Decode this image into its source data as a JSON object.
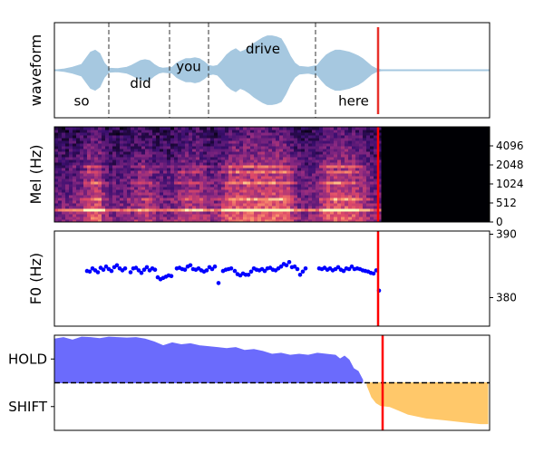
{
  "chart_data": [
    {
      "type": "area",
      "panel": "waveform",
      "ylabel": "waveform",
      "x_range": [
        0,
        4.8
      ],
      "y_range": [
        -1,
        1
      ],
      "word_boundaries": [
        0.6,
        1.27,
        1.7,
        2.88
      ],
      "words": [
        {
          "text": "so",
          "x": 0.3,
          "y": -0.65
        },
        {
          "text": "did",
          "x": 0.95,
          "y": -0.28
        },
        {
          "text": "you",
          "x": 1.48,
          "y": 0.08
        },
        {
          "text": "drive",
          "x": 2.3,
          "y": 0.45
        },
        {
          "text": "here",
          "x": 3.3,
          "y": -0.65
        }
      ],
      "envelope": [
        [
          0.0,
          0.0
        ],
        [
          0.1,
          0.02
        ],
        [
          0.2,
          0.06
        ],
        [
          0.3,
          0.12
        ],
        [
          0.35,
          0.25
        ],
        [
          0.4,
          0.38
        ],
        [
          0.45,
          0.42
        ],
        [
          0.5,
          0.35
        ],
        [
          0.55,
          0.15
        ],
        [
          0.6,
          0.04
        ],
        [
          0.7,
          0.03
        ],
        [
          0.8,
          0.06
        ],
        [
          0.85,
          0.1
        ],
        [
          0.9,
          0.15
        ],
        [
          0.95,
          0.2
        ],
        [
          1.0,
          0.22
        ],
        [
          1.05,
          0.2
        ],
        [
          1.1,
          0.12
        ],
        [
          1.15,
          0.06
        ],
        [
          1.2,
          0.04
        ],
        [
          1.3,
          0.06
        ],
        [
          1.35,
          0.15
        ],
        [
          1.4,
          0.2
        ],
        [
          1.45,
          0.24
        ],
        [
          1.5,
          0.24
        ],
        [
          1.55,
          0.26
        ],
        [
          1.6,
          0.24
        ],
        [
          1.65,
          0.18
        ],
        [
          1.7,
          0.1
        ],
        [
          1.75,
          0.08
        ],
        [
          1.8,
          0.1
        ],
        [
          1.85,
          0.2
        ],
        [
          1.9,
          0.32
        ],
        [
          1.95,
          0.4
        ],
        [
          2.0,
          0.45
        ],
        [
          2.05,
          0.38
        ],
        [
          2.1,
          0.42
        ],
        [
          2.15,
          0.48
        ],
        [
          2.2,
          0.56
        ],
        [
          2.25,
          0.62
        ],
        [
          2.3,
          0.68
        ],
        [
          2.35,
          0.72
        ],
        [
          2.4,
          0.72
        ],
        [
          2.45,
          0.7
        ],
        [
          2.5,
          0.66
        ],
        [
          2.55,
          0.5
        ],
        [
          2.6,
          0.3
        ],
        [
          2.65,
          0.15
        ],
        [
          2.7,
          0.08
        ],
        [
          2.8,
          0.06
        ],
        [
          2.9,
          0.1
        ],
        [
          2.95,
          0.22
        ],
        [
          3.0,
          0.32
        ],
        [
          3.05,
          0.38
        ],
        [
          3.1,
          0.42
        ],
        [
          3.15,
          0.42
        ],
        [
          3.2,
          0.4
        ],
        [
          3.25,
          0.38
        ],
        [
          3.3,
          0.34
        ],
        [
          3.35,
          0.3
        ],
        [
          3.4,
          0.24
        ],
        [
          3.45,
          0.16
        ],
        [
          3.5,
          0.08
        ],
        [
          3.55,
          0.03
        ],
        [
          3.6,
          0.01
        ],
        [
          3.7,
          0.0
        ],
        [
          4.8,
          0.0
        ]
      ],
      "cursor_x": 3.57,
      "cursor_color": "#e8302a",
      "fill_color": "#a6c8e0"
    },
    {
      "type": "heatmap",
      "panel": "mel",
      "ylabel": "Mel (Hz)",
      "x_range": [
        0,
        4.8
      ],
      "yticks": [
        "0",
        "512",
        "1024",
        "2048",
        "4096"
      ],
      "silence_from_x": 3.58,
      "cursor_x": 3.57,
      "cursor_color": "#ff0000",
      "colormap": [
        "#000004",
        "#3b0f70",
        "#8c2981",
        "#de4968",
        "#fe9f6d",
        "#fcfdbf"
      ]
    },
    {
      "type": "scatter",
      "panel": "f0",
      "ylabel": "F0 (Hz)",
      "x_range": [
        0,
        4.8
      ],
      "ylim": [
        375.5,
        390.5
      ],
      "yticks": [
        380,
        390
      ],
      "marker_color": "#0000ff",
      "cursor_x": 3.57,
      "cursor_color": "#ff0000",
      "points": [
        [
          0.36,
          384.2
        ],
        [
          0.39,
          384.1
        ],
        [
          0.42,
          384.6
        ],
        [
          0.45,
          384.3
        ],
        [
          0.48,
          384.0
        ],
        [
          0.51,
          384.7
        ],
        [
          0.54,
          384.4
        ],
        [
          0.57,
          384.9
        ],
        [
          0.6,
          384.5
        ],
        [
          0.63,
          384.2
        ],
        [
          0.66,
          384.8
        ],
        [
          0.69,
          385.1
        ],
        [
          0.72,
          384.6
        ],
        [
          0.75,
          384.3
        ],
        [
          0.78,
          384.6
        ],
        [
          0.84,
          384.0
        ],
        [
          0.87,
          384.6
        ],
        [
          0.9,
          384.7
        ],
        [
          0.93,
          384.3
        ],
        [
          0.96,
          383.9
        ],
        [
          0.99,
          384.4
        ],
        [
          1.02,
          384.8
        ],
        [
          1.05,
          384.3
        ],
        [
          1.08,
          384.6
        ],
        [
          1.11,
          384.4
        ],
        [
          1.14,
          383.2
        ],
        [
          1.17,
          382.9
        ],
        [
          1.2,
          383.1
        ],
        [
          1.23,
          383.3
        ],
        [
          1.26,
          383.5
        ],
        [
          1.29,
          383.4
        ],
        [
          1.35,
          384.6
        ],
        [
          1.38,
          384.7
        ],
        [
          1.41,
          384.5
        ],
        [
          1.44,
          384.4
        ],
        [
          1.47,
          384.9
        ],
        [
          1.5,
          385.1
        ],
        [
          1.53,
          384.5
        ],
        [
          1.56,
          384.4
        ],
        [
          1.59,
          384.6
        ],
        [
          1.62,
          384.3
        ],
        [
          1.65,
          384.1
        ],
        [
          1.68,
          384.3
        ],
        [
          1.71,
          384.8
        ],
        [
          1.74,
          384.5
        ],
        [
          1.77,
          384.9
        ],
        [
          1.81,
          382.3
        ],
        [
          1.86,
          384.2
        ],
        [
          1.89,
          384.4
        ],
        [
          1.92,
          384.5
        ],
        [
          1.95,
          384.6
        ],
        [
          1.99,
          384.2
        ],
        [
          2.02,
          383.7
        ],
        [
          2.05,
          383.5
        ],
        [
          2.08,
          383.8
        ],
        [
          2.11,
          383.6
        ],
        [
          2.14,
          383.6
        ],
        [
          2.17,
          384.1
        ],
        [
          2.2,
          384.6
        ],
        [
          2.23,
          384.4
        ],
        [
          2.26,
          384.3
        ],
        [
          2.29,
          384.5
        ],
        [
          2.32,
          384.2
        ],
        [
          2.35,
          384.6
        ],
        [
          2.38,
          384.7
        ],
        [
          2.41,
          384.4
        ],
        [
          2.44,
          384.3
        ],
        [
          2.47,
          384.6
        ],
        [
          2.5,
          384.9
        ],
        [
          2.53,
          385.3
        ],
        [
          2.56,
          385.1
        ],
        [
          2.59,
          385.6
        ],
        [
          2.62,
          384.8
        ],
        [
          2.65,
          384.9
        ],
        [
          2.68,
          384.5
        ],
        [
          2.71,
          383.6
        ],
        [
          2.74,
          384.1
        ],
        [
          2.77,
          384.6
        ],
        [
          2.92,
          384.6
        ],
        [
          2.95,
          384.5
        ],
        [
          2.98,
          384.7
        ],
        [
          3.01,
          384.4
        ],
        [
          3.04,
          384.6
        ],
        [
          3.07,
          384.3
        ],
        [
          3.1,
          384.5
        ],
        [
          3.13,
          384.8
        ],
        [
          3.16,
          384.4
        ],
        [
          3.19,
          384.2
        ],
        [
          3.22,
          384.6
        ],
        [
          3.25,
          384.5
        ],
        [
          3.28,
          384.9
        ],
        [
          3.31,
          384.5
        ],
        [
          3.34,
          384.6
        ],
        [
          3.37,
          384.5
        ],
        [
          3.4,
          384.3
        ],
        [
          3.43,
          384.2
        ],
        [
          3.46,
          384.1
        ],
        [
          3.49,
          383.9
        ],
        [
          3.52,
          383.8
        ],
        [
          3.55,
          384.3
        ],
        [
          3.58,
          381.1
        ]
      ]
    },
    {
      "type": "area",
      "panel": "vad",
      "yticks": [
        "HOLD",
        "SHIFT"
      ],
      "x_range": [
        0,
        4.8
      ],
      "y_range": [
        -1,
        1
      ],
      "threshold_y": 0.0,
      "hold_color": "#6b6bfc",
      "shift_color": "#ffc86a",
      "cursor_x": 3.62,
      "cursor_color": "#ff0000",
      "hold_series": [
        [
          0.0,
          0.92
        ],
        [
          0.1,
          0.95
        ],
        [
          0.2,
          0.9
        ],
        [
          0.3,
          0.96
        ],
        [
          0.4,
          0.95
        ],
        [
          0.5,
          0.93
        ],
        [
          0.6,
          0.96
        ],
        [
          0.7,
          0.95
        ],
        [
          0.8,
          0.94
        ],
        [
          0.9,
          0.95
        ],
        [
          1.0,
          0.92
        ],
        [
          1.1,
          0.86
        ],
        [
          1.2,
          0.78
        ],
        [
          1.3,
          0.84
        ],
        [
          1.4,
          0.8
        ],
        [
          1.5,
          0.82
        ],
        [
          1.6,
          0.78
        ],
        [
          1.7,
          0.76
        ],
        [
          1.8,
          0.74
        ],
        [
          1.9,
          0.72
        ],
        [
          2.0,
          0.74
        ],
        [
          2.1,
          0.68
        ],
        [
          2.2,
          0.7
        ],
        [
          2.3,
          0.66
        ],
        [
          2.4,
          0.6
        ],
        [
          2.5,
          0.62
        ],
        [
          2.6,
          0.58
        ],
        [
          2.7,
          0.6
        ],
        [
          2.8,
          0.58
        ],
        [
          2.9,
          0.62
        ],
        [
          3.0,
          0.6
        ],
        [
          3.1,
          0.58
        ],
        [
          3.15,
          0.5
        ],
        [
          3.2,
          0.56
        ],
        [
          3.25,
          0.48
        ],
        [
          3.3,
          0.3
        ],
        [
          3.35,
          0.24
        ],
        [
          3.4,
          0.06
        ]
      ],
      "shift_series": [
        [
          3.45,
          -0.06
        ],
        [
          3.5,
          -0.3
        ],
        [
          3.55,
          -0.42
        ],
        [
          3.6,
          -0.48
        ],
        [
          3.7,
          -0.5
        ],
        [
          3.8,
          -0.58
        ],
        [
          3.9,
          -0.66
        ],
        [
          4.0,
          -0.7
        ],
        [
          4.1,
          -0.74
        ],
        [
          4.2,
          -0.76
        ],
        [
          4.3,
          -0.78
        ],
        [
          4.4,
          -0.8
        ],
        [
          4.5,
          -0.82
        ],
        [
          4.6,
          -0.84
        ],
        [
          4.7,
          -0.86
        ],
        [
          4.78,
          -0.86
        ]
      ]
    }
  ]
}
